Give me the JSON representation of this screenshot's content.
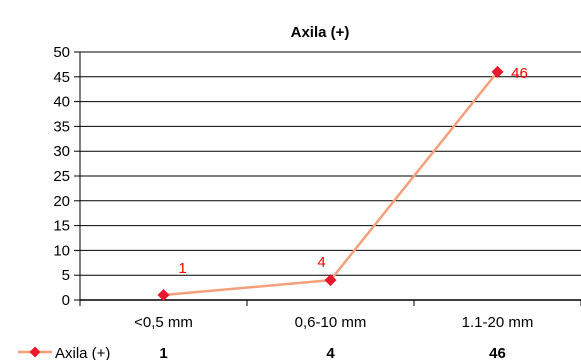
{
  "chart_data": {
    "type": "line",
    "title": "Axila (+)",
    "categories": [
      "<0,5 mm",
      "0,6-10 mm",
      "1.1-20 mm"
    ],
    "series": [
      {
        "name": "Axila (+)",
        "values": [
          1,
          4,
          46
        ]
      }
    ],
    "data_labels": [
      "1",
      "4",
      "46"
    ],
    "ylim": [
      0,
      50
    ],
    "yticks": [
      "0",
      "5",
      "10",
      "15",
      "20",
      "25",
      "30",
      "35",
      "40",
      "45",
      "50"
    ],
    "grid": true,
    "legend": "bottom-left data table",
    "colors": {
      "line": "#f4a07a",
      "marker": "#e8192c",
      "label": "#ff0000"
    }
  }
}
